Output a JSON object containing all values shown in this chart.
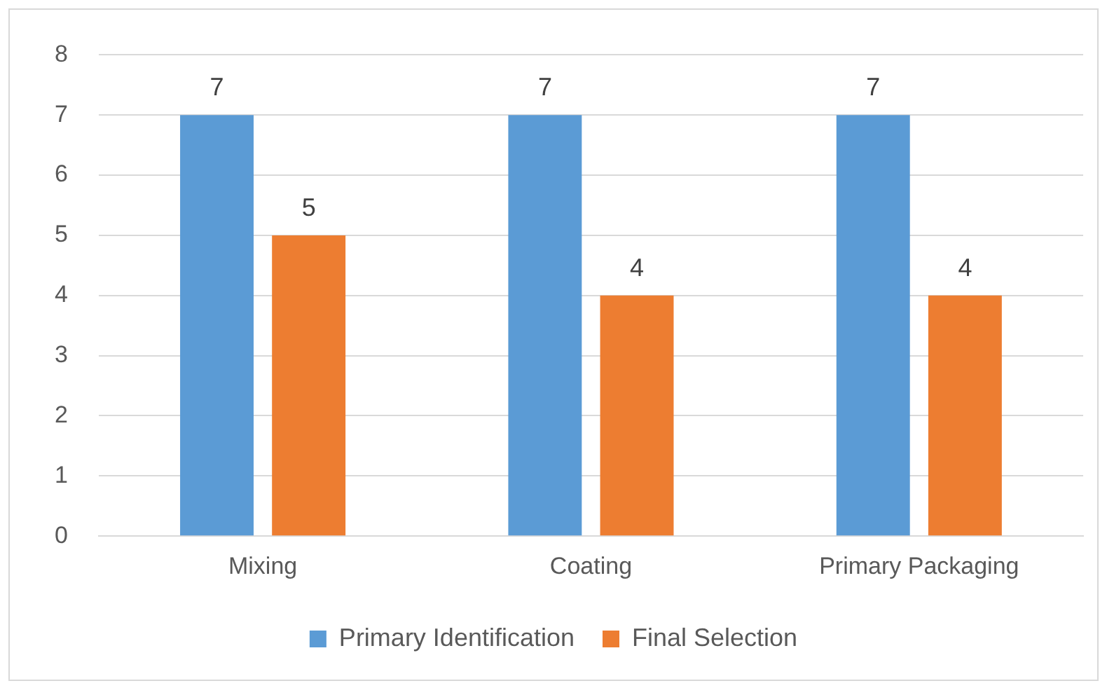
{
  "chart_data": {
    "type": "bar",
    "categories": [
      "Mixing",
      "Coating",
      "Primary Packaging"
    ],
    "series": [
      {
        "name": "Primary Identification",
        "color": "#5b9bd5",
        "values": [
          7,
          7,
          7
        ]
      },
      {
        "name": "Final Selection",
        "color": "#ed7d31",
        "values": [
          5,
          4,
          4
        ]
      }
    ],
    "ylim": [
      0,
      8
    ],
    "yticks": [
      0,
      1,
      2,
      3,
      4,
      5,
      6,
      7,
      8
    ],
    "grid": "y",
    "legend": "bottom",
    "data_labels": true
  }
}
